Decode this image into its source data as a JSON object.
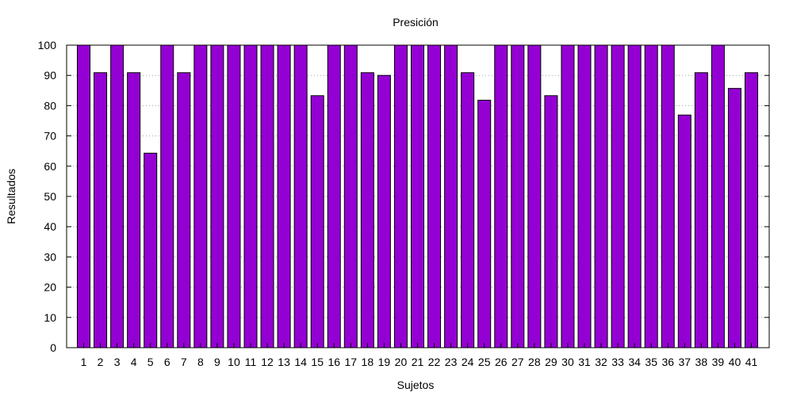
{
  "chart_data": {
    "type": "bar",
    "title": "Presición",
    "xlabel": "Sujetos",
    "ylabel": "Resultados",
    "categories": [
      "1",
      "2",
      "3",
      "4",
      "5",
      "6",
      "7",
      "8",
      "9",
      "10",
      "11",
      "12",
      "13",
      "14",
      "15",
      "16",
      "17",
      "18",
      "19",
      "20",
      "21",
      "22",
      "23",
      "24",
      "25",
      "26",
      "27",
      "28",
      "29",
      "30",
      "31",
      "32",
      "33",
      "34",
      "35",
      "36",
      "37",
      "38",
      "39",
      "40",
      "41"
    ],
    "values": [
      100,
      90.9,
      100,
      90.9,
      64.3,
      100,
      90.9,
      100,
      100,
      100,
      100,
      100,
      100,
      100,
      83.3,
      100,
      100,
      90.9,
      90,
      100,
      100,
      100,
      100,
      90.9,
      81.8,
      100,
      100,
      100,
      83.3,
      100,
      100,
      100,
      100,
      100,
      100,
      100,
      76.9,
      90.9,
      100,
      85.7,
      90.9
    ],
    "ylim": [
      0,
      100
    ],
    "yticks": [
      0,
      10,
      20,
      30,
      40,
      50,
      60,
      70,
      80,
      90,
      100
    ],
    "grid": "horizontal dotted",
    "legend": "none",
    "bar_color": "#9400d3",
    "bar_edge_color": "#000000"
  }
}
